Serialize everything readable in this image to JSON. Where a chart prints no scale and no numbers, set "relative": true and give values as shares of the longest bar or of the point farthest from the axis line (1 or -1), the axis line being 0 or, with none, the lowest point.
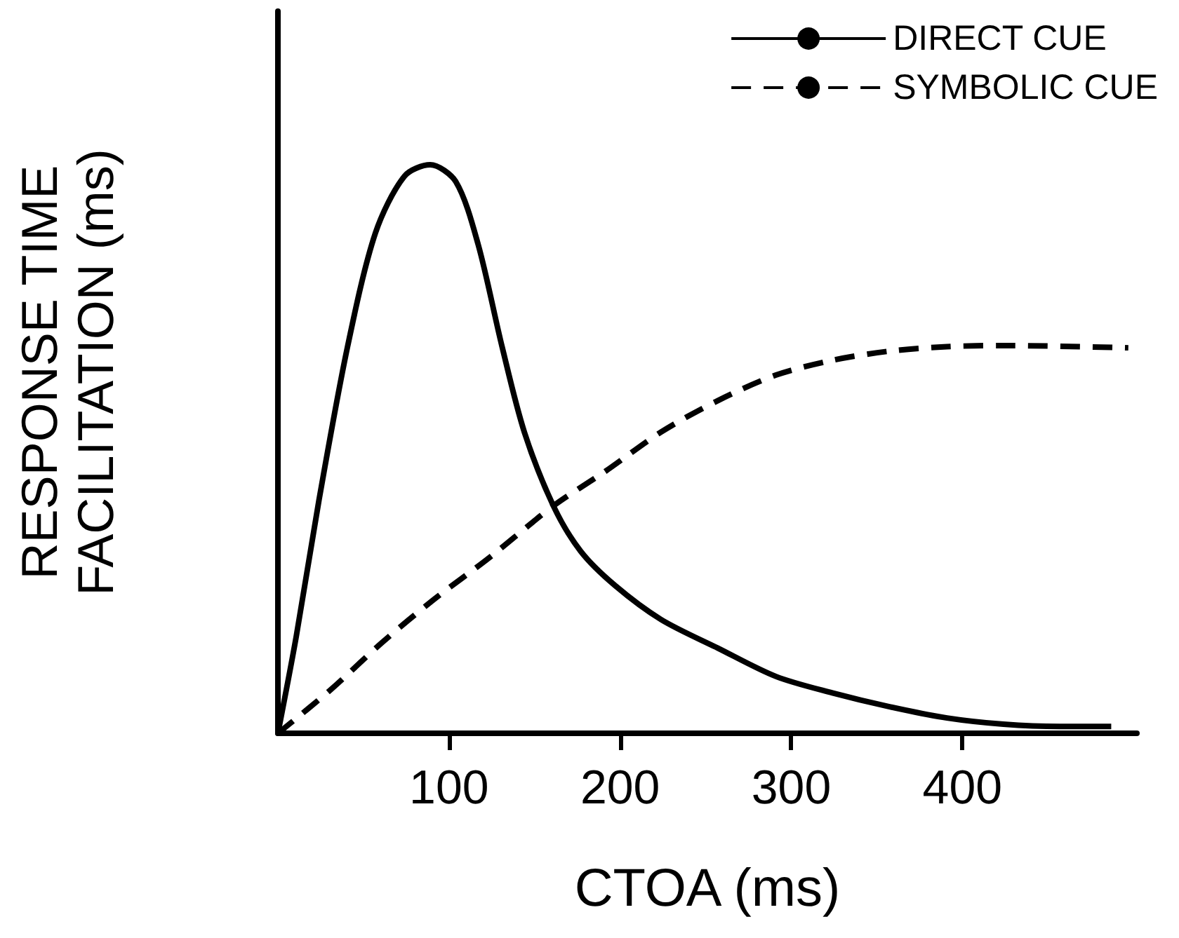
{
  "chart_data": {
    "type": "line",
    "xlabel": "CTOA (ms)",
    "ylabel": "RESPONSE TIME\nFACILITATION (ms)",
    "relative": true,
    "xlim": [
      0,
      502
    ],
    "xticks": [
      100,
      200,
      300,
      400
    ],
    "grid": false,
    "legend": "top right",
    "marker": "none",
    "series": [
      {
        "name": "DIRECT CUE",
        "color": "#000000",
        "line_style": "solid",
        "x": [
          0,
          10.7,
          24,
          40.7,
          57,
          74,
          89,
          104,
          117,
          131,
          144,
          161,
          177,
          197,
          224,
          257,
          291,
          324,
          357,
          391,
          424,
          457,
          487
        ],
        "values": [
          0,
          0.17,
          0.41,
          0.68,
          0.88,
          0.98,
          1,
          0.97,
          0.86,
          0.68,
          0.53,
          0.4,
          0.32,
          0.26,
          0.2,
          0.15,
          0.1,
          0.071,
          0.047,
          0.027,
          0.016,
          0.012,
          0.012
        ]
      },
      {
        "name": "SYMBOLIC CUE",
        "color": "#000000",
        "line_style": "dashed",
        "x": [
          0,
          31,
          61,
          91,
          124,
          161,
          191,
          224,
          257,
          291,
          324,
          357,
          391,
          424,
          497
        ],
        "values": [
          0,
          0.077,
          0.16,
          0.235,
          0.31,
          0.4,
          0.46,
          0.53,
          0.585,
          0.63,
          0.656,
          0.672,
          0.68,
          0.682,
          0.678
        ]
      }
    ]
  }
}
